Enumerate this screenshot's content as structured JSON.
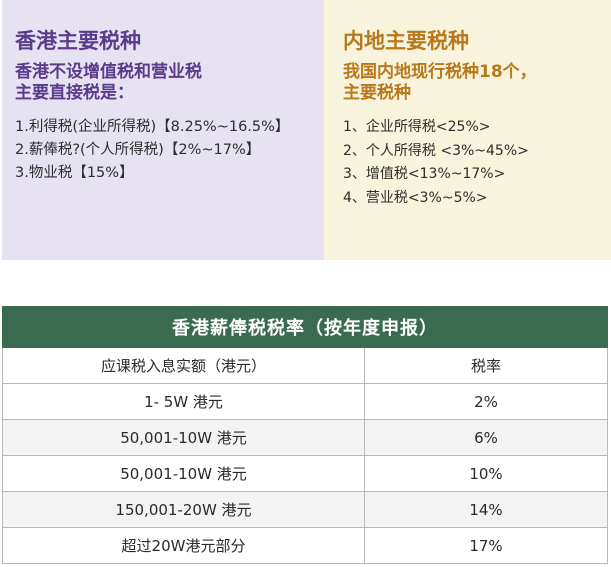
{
  "hk_panel": {
    "title": "香港主要税种",
    "subtitle_line1": "香港不设增值税和营业税",
    "subtitle_line2": "主要直接税是：",
    "items": [
      "1.利得税(企业所得税)【8.25%~16.5%】",
      "2.薪俸税?(个人所得税)【2%~17%】",
      "3.物业税【15%】"
    ]
  },
  "mainland_panel": {
    "title": "内地主要税种",
    "subtitle_line1": "我国内地现行税种18个，",
    "subtitle_line2": "主要税种",
    "items": [
      "1、企业所得税<25%>",
      "2、个人所得税 <3%~45%>",
      "3、增值税<13%~17%>",
      "4、营业税<3%~5%>"
    ]
  },
  "salary_table": {
    "title": "香港薪俸税税率（按年度申报）",
    "col_income": "应课税入息实额（港元）",
    "col_rate": "税率",
    "rows": [
      {
        "income": "1- 5W 港元",
        "rate": "2%"
      },
      {
        "income": "50,001-10W 港元",
        "rate": "6%"
      },
      {
        "income": "50,001-10W 港元",
        "rate": "10%"
      },
      {
        "income": "150,001-20W 港元",
        "rate": "14%"
      },
      {
        "income": "超过20W港元部分",
        "rate": "17%"
      }
    ]
  },
  "colors": {
    "hk_panel_bg": "#e6e2f2",
    "hk_text": "#5a3c8a",
    "mainland_panel_bg": "#f7f3dc",
    "mainland_text": "#b8791c",
    "table_header_bg": "#3a6b50"
  }
}
